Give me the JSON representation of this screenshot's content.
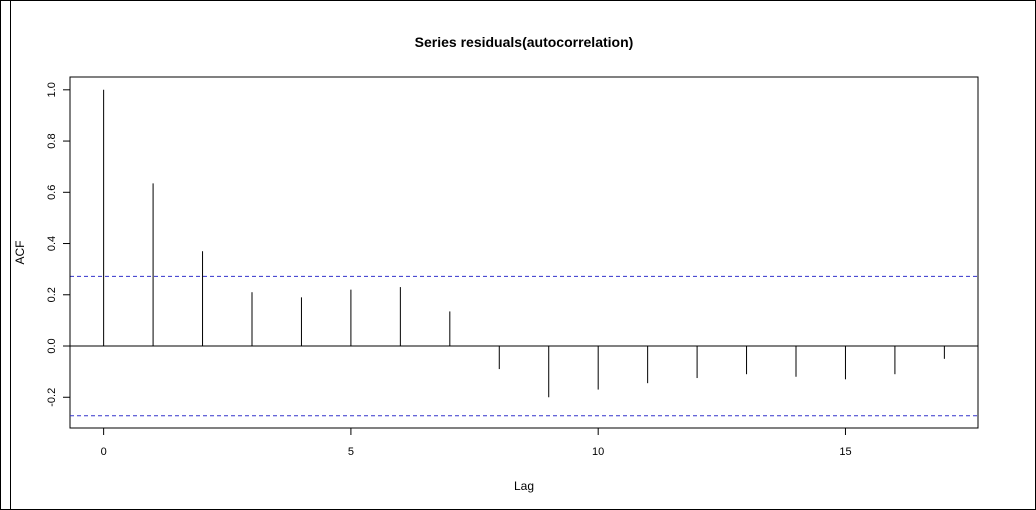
{
  "chart_data": {
    "type": "bar",
    "title": "Series  residuals(autocorrelation)",
    "xlabel": "Lag",
    "ylabel": "ACF",
    "xlim": [
      -0.68,
      17.68
    ],
    "ylim": [
      -0.32,
      1.05
    ],
    "x_ticks": [
      0,
      5,
      10,
      15
    ],
    "x_tick_labels": [
      "0",
      "5",
      "10",
      "15"
    ],
    "y_ticks": [
      -0.2,
      0.0,
      0.2,
      0.4,
      0.6,
      0.8,
      1.0
    ],
    "y_tick_labels": [
      "-0.2",
      "0.0",
      "0.2",
      "0.4",
      "0.6",
      "0.8",
      "1.0"
    ],
    "lags": [
      0,
      1,
      2,
      3,
      4,
      5,
      6,
      7,
      8,
      9,
      10,
      11,
      12,
      13,
      14,
      15,
      16,
      17
    ],
    "values": [
      1.0,
      0.635,
      0.37,
      0.21,
      0.19,
      0.22,
      0.23,
      0.135,
      -0.09,
      -0.2,
      -0.17,
      -0.145,
      -0.125,
      -0.11,
      -0.12,
      -0.13,
      -0.11,
      -0.05
    ],
    "confidence_bounds": [
      0.272,
      -0.272
    ],
    "grid": false,
    "colors": {
      "spikes": "#000000",
      "bounds": "#3333cc",
      "zero_line": "#000000"
    }
  }
}
